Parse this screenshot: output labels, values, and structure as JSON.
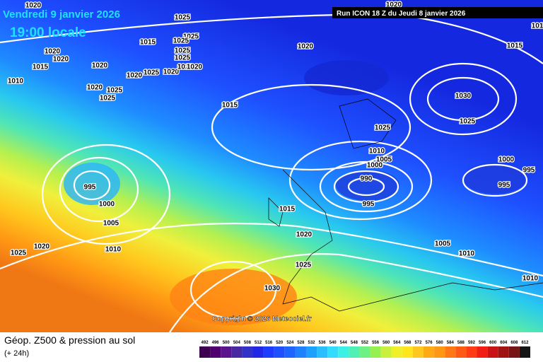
{
  "header": {
    "date": "Vendredi 9 janvier 2026",
    "time": "19:00 locale",
    "run": "Run ICON 18 Z du Jeudi 8 janvier 2026"
  },
  "copyright": "Copyright © 2026 Meteociel.fr",
  "footer": {
    "title": "Géop. Z500 & pression au sol",
    "lead": "(+ 24h)"
  },
  "isobar_labels": [
    "1020",
    "1025",
    "1015",
    "1025",
    "1025",
    "1025",
    "1025",
    "1020",
    "1020",
    "1015",
    "1020",
    "1020",
    "1025",
    "1020",
    "1020",
    "1020",
    "1010",
    "1020",
    "1025",
    "1025",
    "1020",
    "1015",
    "1020",
    "1015",
    "1030",
    "1025",
    "1025",
    "1010",
    "1005",
    "1000",
    "990",
    "995",
    "1000",
    "995",
    "995",
    "995",
    "1000",
    "1005",
    "1010",
    "1015",
    "1020",
    "1020",
    "1025",
    "1025",
    "1030",
    "1005",
    "1010",
    "1010",
    "101"
  ],
  "colorbar": {
    "labels": [
      492,
      496,
      500,
      504,
      508,
      512,
      516,
      520,
      524,
      528,
      532,
      536,
      540,
      544,
      548,
      552,
      556,
      560,
      564,
      568,
      572,
      576,
      580,
      584,
      588,
      592,
      596,
      600,
      604,
      608,
      612
    ],
    "colors": [
      "#3c0050",
      "#50006e",
      "#5a148c",
      "#4628a0",
      "#3232c8",
      "#1e28e6",
      "#1e3cff",
      "#1e50ff",
      "#1e64ff",
      "#1e82ff",
      "#1ea0ff",
      "#28beff",
      "#32dcff",
      "#3cf0e6",
      "#50f0b4",
      "#6ef082",
      "#96f050",
      "#c8f03c",
      "#f0f028",
      "#ffe61e",
      "#ffc81e",
      "#ffaa14",
      "#ff9614",
      "#ff7814",
      "#ff5a14",
      "#ff3c14",
      "#f01e14",
      "#c81414",
      "#a01414",
      "#781414",
      "#141414"
    ]
  }
}
